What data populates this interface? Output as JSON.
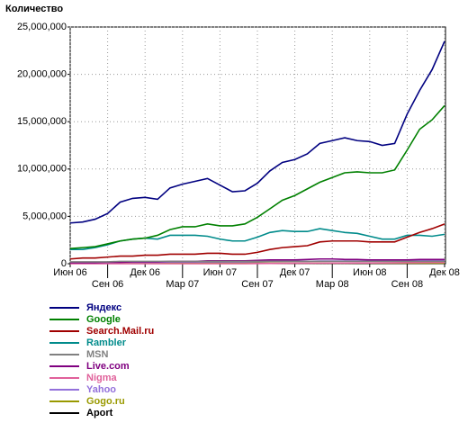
{
  "chart_data": {
    "type": "line",
    "y_label": "Количество",
    "categories": [
      "Июн 06",
      null,
      null,
      "Сен 06",
      null,
      null,
      "Дек 06",
      null,
      null,
      "Мар 07",
      null,
      null,
      "Июн 07",
      null,
      null,
      "Сен 07",
      null,
      null,
      "Дек 07",
      null,
      null,
      "Мар 08",
      null,
      null,
      "Июн 08",
      null,
      null,
      "Сен 08",
      null,
      null,
      "Дек 08"
    ],
    "ylim": [
      0,
      25000000
    ],
    "yticks": [
      {
        "value": 0,
        "label": "0"
      },
      {
        "value": 5000000,
        "label": "5,000,000"
      },
      {
        "value": 10000000,
        "label": "10,000,000"
      },
      {
        "value": 15000000,
        "label": "15,000,000"
      },
      {
        "value": 20000000,
        "label": "20,000,000"
      },
      {
        "value": 25000000,
        "label": "25,000,000"
      }
    ],
    "grid": true,
    "legend": "bottom",
    "series": [
      {
        "name": "Яндекс",
        "color": "#000080",
        "values": [
          4300000,
          4400000,
          4700000,
          5300000,
          6500000,
          6900000,
          7000000,
          6800000,
          8000000,
          8400000,
          8700000,
          9000000,
          8300000,
          7600000,
          7700000,
          8500000,
          9800000,
          10700000,
          11000000,
          11600000,
          12700000,
          13000000,
          13300000,
          13000000,
          12900000,
          12500000,
          12700000,
          15800000,
          18300000,
          20500000,
          23500000
        ]
      },
      {
        "name": "Google",
        "color": "#008000",
        "values": [
          1600000,
          1700000,
          1800000,
          2100000,
          2400000,
          2600000,
          2700000,
          3000000,
          3600000,
          3900000,
          3900000,
          4200000,
          4000000,
          4000000,
          4200000,
          4900000,
          5800000,
          6700000,
          7200000,
          7900000,
          8600000,
          9100000,
          9600000,
          9700000,
          9600000,
          9600000,
          9900000,
          12000000,
          14200000,
          15200000,
          16700000
        ]
      },
      {
        "name": "Search.Mail.ru",
        "color": "#a00000",
        "values": [
          500000,
          600000,
          600000,
          700000,
          800000,
          800000,
          900000,
          900000,
          1000000,
          1000000,
          1000000,
          1100000,
          1100000,
          1000000,
          1000000,
          1200000,
          1500000,
          1700000,
          1800000,
          1900000,
          2300000,
          2400000,
          2400000,
          2400000,
          2300000,
          2300000,
          2300000,
          2800000,
          3300000,
          3700000,
          4200000
        ]
      },
      {
        "name": "Rambler",
        "color": "#008b8b",
        "values": [
          1500000,
          1500000,
          1700000,
          2000000,
          2400000,
          2600000,
          2700000,
          2600000,
          3000000,
          3000000,
          3000000,
          2900000,
          2600000,
          2400000,
          2400000,
          2800000,
          3300000,
          3500000,
          3400000,
          3400000,
          3700000,
          3500000,
          3300000,
          3200000,
          2900000,
          2600000,
          2600000,
          3000000,
          3000000,
          2900000,
          3100000
        ]
      },
      {
        "name": "MSN",
        "color": "#808080",
        "values": [
          200000,
          200000,
          200000,
          200000,
          250000,
          250000,
          250000,
          250000,
          250000,
          250000,
          250000,
          250000,
          250000,
          250000,
          250000,
          250000,
          250000,
          250000,
          250000,
          250000,
          250000,
          250000,
          250000,
          250000,
          250000,
          250000,
          250000,
          250000,
          250000,
          250000,
          250000
        ]
      },
      {
        "name": "Live.com",
        "color": "#800080",
        "values": [
          100000,
          100000,
          100000,
          150000,
          150000,
          200000,
          200000,
          200000,
          250000,
          250000,
          250000,
          300000,
          300000,
          300000,
          300000,
          350000,
          400000,
          400000,
          400000,
          450000,
          500000,
          500000,
          450000,
          450000,
          400000,
          400000,
          400000,
          400000,
          450000,
          450000,
          450000
        ]
      },
      {
        "name": "Nigma",
        "color": "#e0609a",
        "values": [
          0,
          0,
          0,
          0,
          0,
          0,
          0,
          0,
          0,
          0,
          0,
          0,
          0,
          0,
          0,
          20000,
          30000,
          40000,
          50000,
          50000,
          60000,
          70000,
          70000,
          80000,
          80000,
          90000,
          100000,
          110000,
          120000,
          130000,
          140000
        ]
      },
      {
        "name": "Yahoo",
        "color": "#9370db",
        "values": [
          100000,
          100000,
          100000,
          120000,
          150000,
          150000,
          150000,
          150000,
          180000,
          180000,
          180000,
          200000,
          200000,
          200000,
          200000,
          220000,
          250000,
          250000,
          250000,
          250000,
          280000,
          280000,
          280000,
          280000,
          280000,
          300000,
          300000,
          300000,
          320000,
          320000,
          350000
        ]
      },
      {
        "name": "Gogo.ru",
        "color": "#999900",
        "values": [
          50000,
          50000,
          50000,
          50000,
          50000,
          60000,
          60000,
          60000,
          60000,
          60000,
          60000,
          60000,
          60000,
          60000,
          60000,
          60000,
          60000,
          60000,
          60000,
          60000,
          60000,
          60000,
          60000,
          60000,
          60000,
          60000,
          60000,
          60000,
          60000,
          60000,
          60000
        ]
      },
      {
        "name": "Aport",
        "color": "#000000",
        "values": [
          60000,
          60000,
          60000,
          60000,
          60000,
          50000,
          50000,
          50000,
          50000,
          50000,
          50000,
          50000,
          50000,
          40000,
          40000,
          40000,
          40000,
          40000,
          40000,
          40000,
          40000,
          40000,
          40000,
          30000,
          30000,
          30000,
          30000,
          30000,
          30000,
          30000,
          30000
        ]
      }
    ]
  }
}
